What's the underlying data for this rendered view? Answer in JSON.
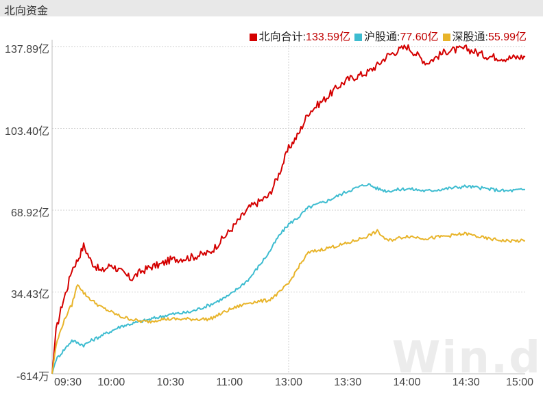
{
  "window": {
    "title": "北向资金"
  },
  "watermark": "Win.d",
  "chart_data": {
    "type": "line",
    "title": "",
    "xlabel": "",
    "ylabel": "",
    "x_ticks": [
      "09:30",
      "10:00",
      "10:30",
      "11:00",
      "13:00",
      "13:30",
      "14:00",
      "14:30",
      "15:00"
    ],
    "y_ticks": [
      "-614万",
      "34.43亿",
      "68.92亿",
      "103.40亿",
      "137.89亿"
    ],
    "ylim": [
      -0.0614,
      137.89
    ],
    "grid": true,
    "legend_position": "top-right",
    "legend": [
      {
        "name": "北向合计",
        "value_label": "133.59亿",
        "color": "#d40000"
      },
      {
        "name": "沪股通",
        "value_label": "77.60亿",
        "color": "#3dbcd0"
      },
      {
        "name": "深股通",
        "value_label": "55.99亿",
        "color": "#e8b42a"
      }
    ],
    "series": [
      {
        "name": "北向合计",
        "color": "#d40000",
        "x": [
          0,
          2,
          5,
          8,
          10,
          13,
          16,
          20,
          25,
          30,
          35,
          40,
          45,
          50,
          55,
          60,
          70,
          80,
          90,
          100,
          110,
          115,
          120,
          125,
          130,
          140,
          145,
          150,
          160,
          165,
          170,
          180,
          190,
          200,
          210,
          220,
          230,
          240
        ],
        "values": [
          0,
          18,
          29,
          37,
          44,
          48,
          54,
          47,
          43,
          46,
          43,
          40,
          43,
          45,
          46,
          48,
          49,
          51,
          60,
          70,
          75,
          84,
          95,
          101,
          110,
          117,
          121,
          124,
          127,
          130,
          134,
          138,
          131,
          136,
          137,
          134,
          133,
          133.59
        ]
      },
      {
        "name": "沪股通",
        "color": "#3dbcd0",
        "x": [
          0,
          2,
          5,
          8,
          10,
          13,
          16,
          20,
          25,
          30,
          35,
          40,
          45,
          50,
          55,
          60,
          70,
          80,
          90,
          100,
          110,
          115,
          120,
          125,
          130,
          140,
          145,
          150,
          160,
          165,
          170,
          180,
          190,
          200,
          210,
          220,
          230,
          240
        ],
        "values": [
          0,
          6,
          9,
          12,
          14,
          13,
          12,
          14,
          16,
          18,
          20,
          21,
          22,
          23,
          24,
          25,
          26,
          29,
          33,
          40,
          51,
          58,
          63,
          66,
          70,
          73,
          75,
          77,
          80,
          78,
          77,
          78,
          77,
          78,
          79,
          78,
          77,
          77.6
        ]
      },
      {
        "name": "深股通",
        "color": "#e8b42a",
        "x": [
          0,
          2,
          5,
          8,
          10,
          13,
          16,
          20,
          25,
          30,
          35,
          40,
          45,
          50,
          55,
          60,
          70,
          80,
          90,
          100,
          110,
          115,
          120,
          125,
          130,
          140,
          145,
          150,
          160,
          165,
          170,
          180,
          190,
          200,
          210,
          220,
          230,
          240
        ],
        "values": [
          0,
          12,
          20,
          26,
          29,
          38,
          34,
          31,
          28,
          26,
          24,
          23,
          22,
          22,
          23,
          23,
          23,
          23,
          27,
          30,
          31,
          34,
          38,
          45,
          51,
          53,
          54,
          55,
          58,
          60,
          56,
          58,
          57,
          58,
          59,
          57,
          56,
          55.99
        ]
      }
    ]
  }
}
